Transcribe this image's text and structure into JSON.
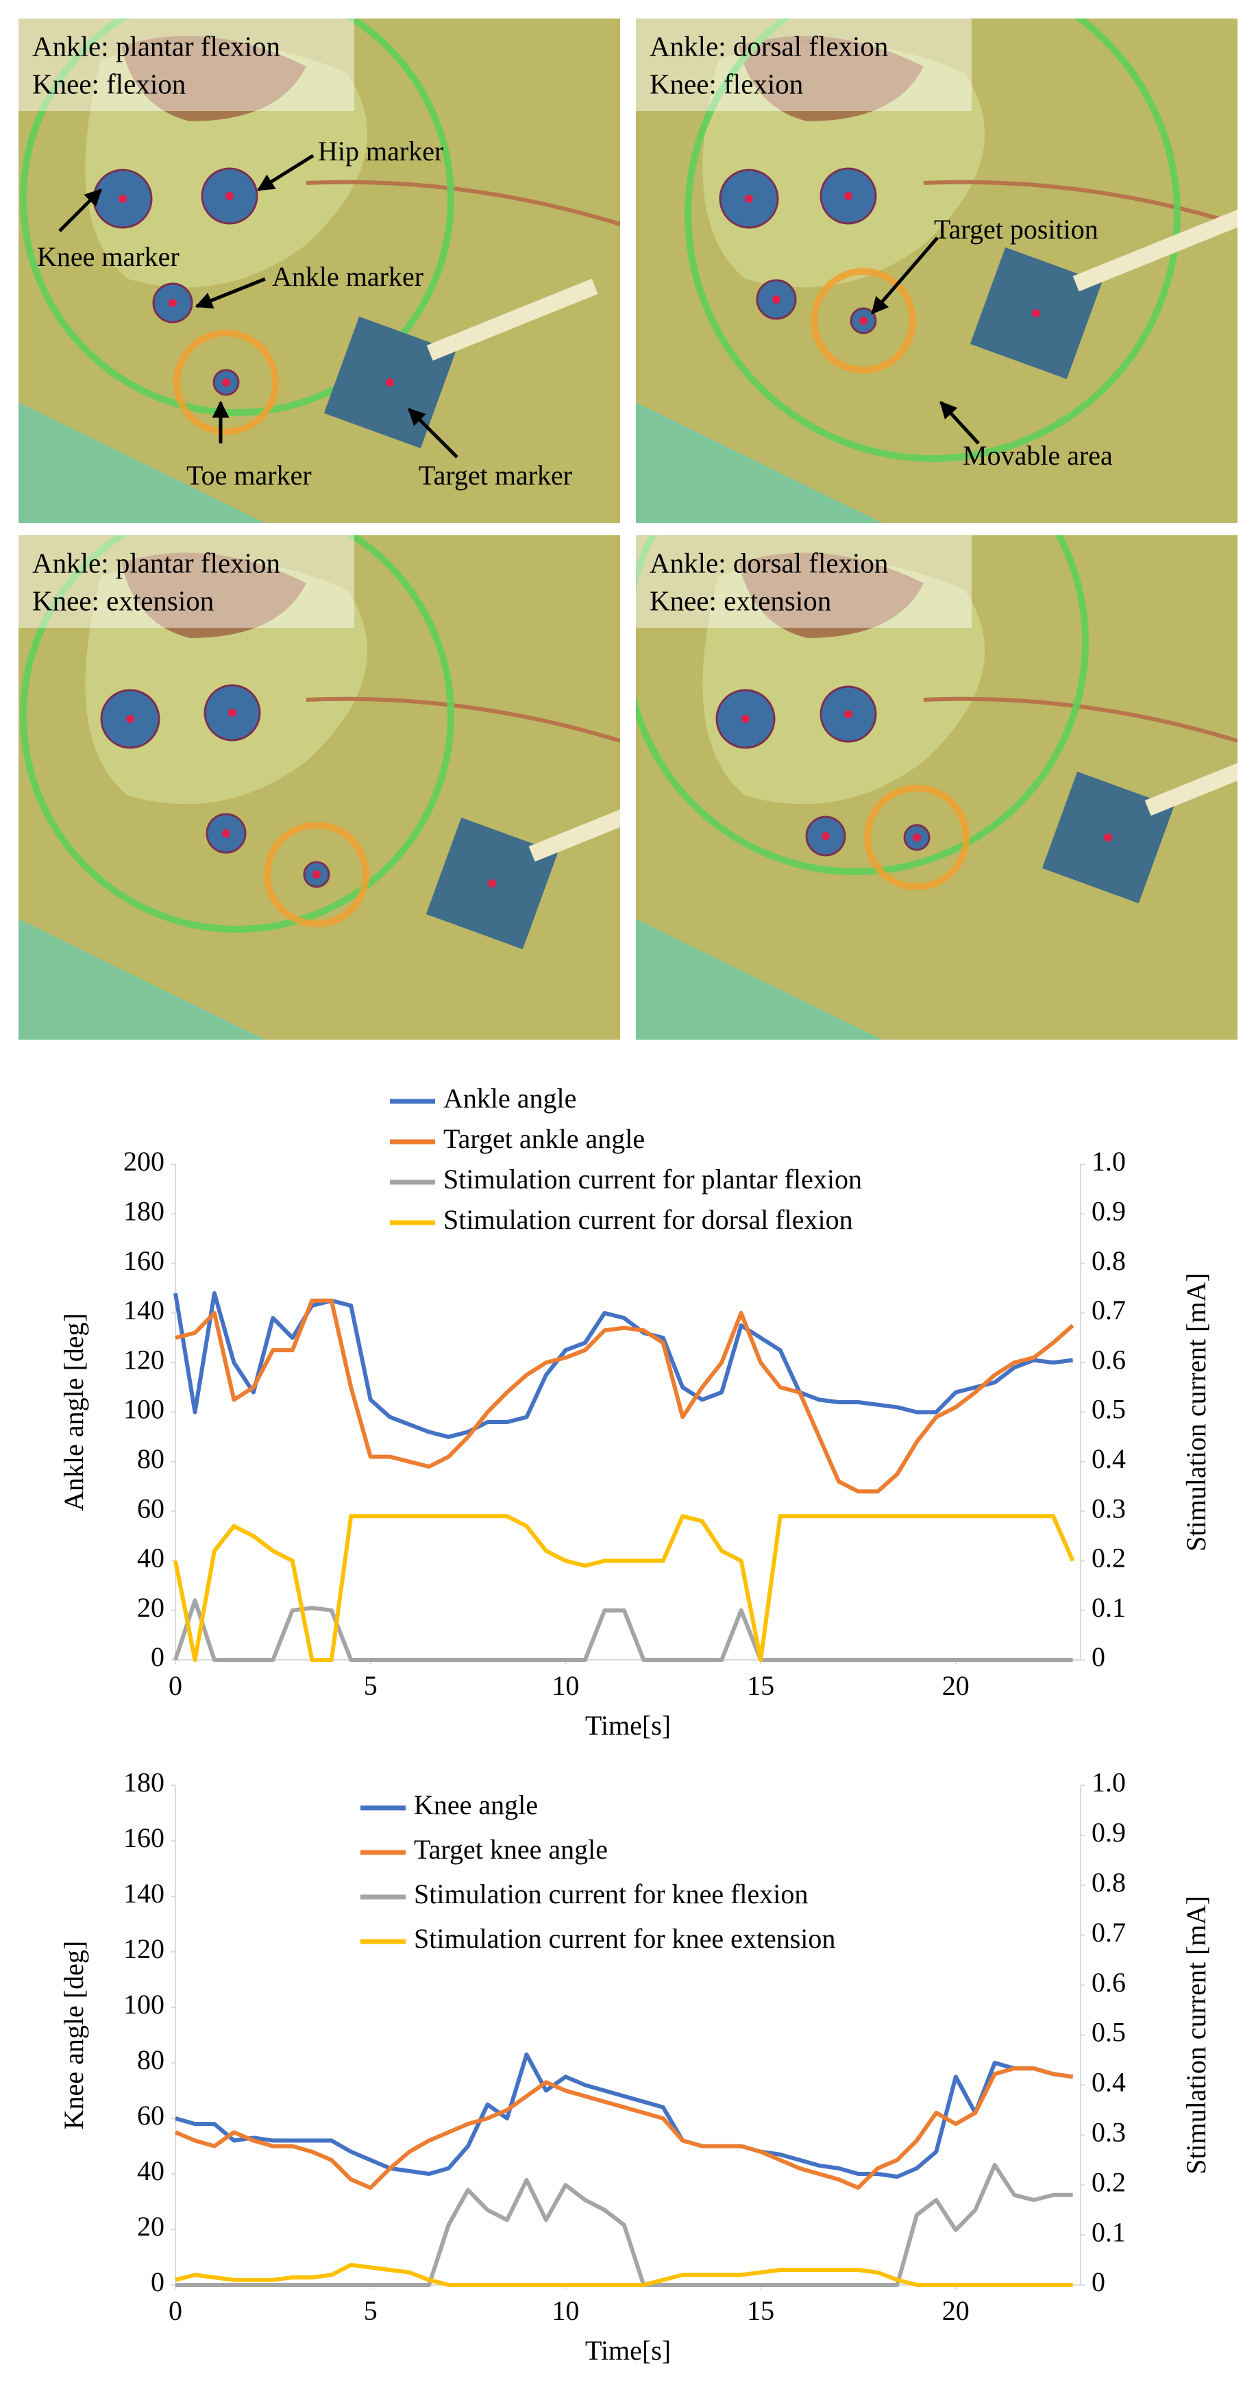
{
  "panels": [
    {
      "caption": [
        "Ankle: plantar flexion",
        "Knee: flexion"
      ],
      "annotations": [
        "Hip marker",
        "Knee marker",
        "Ankle marker",
        "Toe marker",
        "Target marker"
      ]
    },
    {
      "caption": [
        "Ankle: dorsal flexion",
        "Knee: flexion"
      ],
      "annotations": [
        "Target position",
        "Movable area"
      ]
    },
    {
      "caption": [
        "Ankle: plantar flexion",
        "Knee: extension"
      ]
    },
    {
      "caption": [
        "Ankle: dorsal flexion",
        "Knee: extension"
      ]
    }
  ],
  "chart_data": [
    {
      "type": "line",
      "x_label": "Time[s]",
      "y_label": "Ankle angle [deg]",
      "y2_label": "Stimulation current [mA]",
      "x": [
        0,
        0.5,
        1,
        1.5,
        2,
        2.5,
        3,
        3.5,
        4,
        4.5,
        5,
        5.5,
        6,
        6.5,
        7,
        7.5,
        8,
        8.5,
        9,
        9.5,
        10,
        10.5,
        11,
        11.5,
        12,
        12.5,
        13,
        13.5,
        14,
        14.5,
        15,
        15.5,
        16,
        16.5,
        17,
        17.5,
        18,
        18.5,
        19,
        19.5,
        20,
        20.5,
        21,
        21.5,
        22,
        22.5,
        23
      ],
      "xlim": [
        0,
        23.2
      ],
      "xticks": [
        0,
        5,
        10,
        15,
        20
      ],
      "ylim": [
        0,
        200
      ],
      "yticks": [
        0,
        20,
        40,
        60,
        80,
        100,
        120,
        140,
        160,
        180,
        200
      ],
      "y2lim": [
        0,
        1
      ],
      "y2ticks": [
        0,
        0.1,
        0.2,
        0.3,
        0.4,
        0.5,
        0.6,
        0.7,
        0.8,
        0.9,
        {
          "value": 1,
          "label": "1.0"
        }
      ],
      "grid": false,
      "series": [
        {
          "name": "Ankle angle",
          "color": "#4472c4",
          "values": [
            148,
            100,
            148,
            120,
            108,
            138,
            130,
            143,
            145,
            143,
            105,
            98,
            95,
            92,
            90,
            92,
            96,
            96,
            98,
            115,
            125,
            128,
            140,
            138,
            132,
            130,
            110,
            105,
            108,
            135,
            130,
            125,
            108,
            105,
            104,
            104,
            103,
            102,
            100,
            100,
            108,
            110,
            112,
            118,
            121,
            120,
            121
          ]
        },
        {
          "name": "Target ankle angle",
          "color": "#ed7d31",
          "values": [
            130,
            132,
            140,
            105,
            110,
            125,
            125,
            145,
            145,
            110,
            82,
            82,
            80,
            78,
            82,
            90,
            100,
            108,
            115,
            120,
            122,
            125,
            133,
            134,
            133,
            128,
            98,
            110,
            120,
            140,
            120,
            110,
            108,
            90,
            72,
            68,
            68,
            75,
            88,
            98,
            102,
            108,
            115,
            120,
            122,
            128,
            135
          ]
        },
        {
          "name": "Stimulation current for plantar flexion",
          "color": "#a5a5a5",
          "axis": "y2",
          "values": [
            0,
            0.12,
            0,
            0,
            0,
            0,
            0.1,
            0.105,
            0.1,
            0,
            0,
            0,
            0,
            0,
            0,
            0,
            0,
            0,
            0,
            0,
            0,
            0,
            0.1,
            0.1,
            0,
            0,
            0,
            0,
            0,
            0.1,
            0,
            0,
            0,
            0,
            0,
            0,
            0,
            0,
            0,
            0,
            0,
            0,
            0,
            0,
            0,
            0,
            0
          ]
        },
        {
          "name": "Stimulation current for dorsal flexion",
          "color": "#ffc000",
          "axis": "y2",
          "values": [
            0.2,
            0,
            0.22,
            0.27,
            0.25,
            0.22,
            0.2,
            0,
            0,
            0.29,
            0.29,
            0.29,
            0.29,
            0.29,
            0.29,
            0.29,
            0.29,
            0.29,
            0.27,
            0.22,
            0.2,
            0.19,
            0.2,
            0.2,
            0.2,
            0.2,
            0.29,
            0.28,
            0.22,
            0.2,
            0,
            0.29,
            0.29,
            0.29,
            0.29,
            0.29,
            0.29,
            0.29,
            0.29,
            0.29,
            0.29,
            0.29,
            0.29,
            0.29,
            0.29,
            0.29,
            0.2
          ]
        }
      ]
    },
    {
      "type": "line",
      "x_label": "Time[s]",
      "y_label": "Knee angle [deg]",
      "y2_label": "Stimulation current [mA]",
      "x": [
        0,
        0.5,
        1,
        1.5,
        2,
        2.5,
        3,
        3.5,
        4,
        4.5,
        5,
        5.5,
        6,
        6.5,
        7,
        7.5,
        8,
        8.5,
        9,
        9.5,
        10,
        10.5,
        11,
        11.5,
        12,
        12.5,
        13,
        13.5,
        14,
        14.5,
        15,
        15.5,
        16,
        16.5,
        17,
        17.5,
        18,
        18.5,
        19,
        19.5,
        20,
        20.5,
        21,
        21.5,
        22,
        22.5,
        23
      ],
      "xlim": [
        0,
        23.2
      ],
      "xticks": [
        0,
        5,
        10,
        15,
        20
      ],
      "ylim": [
        0,
        180
      ],
      "yticks": [
        0,
        20,
        40,
        60,
        80,
        100,
        120,
        140,
        160,
        180
      ],
      "y2lim": [
        0,
        1
      ],
      "y2ticks": [
        0,
        0.1,
        0.2,
        0.3,
        0.4,
        0.5,
        0.6,
        0.7,
        0.8,
        0.9,
        {
          "value": 1,
          "label": "1.0"
        }
      ],
      "grid": false,
      "series": [
        {
          "name": "Knee angle",
          "color": "#4472c4",
          "values": [
            60,
            58,
            58,
            52,
            53,
            52,
            52,
            52,
            52,
            48,
            45,
            42,
            41,
            40,
            42,
            50,
            65,
            60,
            83,
            70,
            75,
            72,
            70,
            68,
            66,
            64,
            52,
            50,
            50,
            50,
            48,
            47,
            45,
            43,
            42,
            40,
            40,
            39,
            42,
            48,
            75,
            62,
            80,
            78,
            78,
            76,
            75
          ]
        },
        {
          "name": "Target knee angle",
          "color": "#ed7d31",
          "values": [
            55,
            52,
            50,
            55,
            52,
            50,
            50,
            48,
            45,
            38,
            35,
            42,
            48,
            52,
            55,
            58,
            60,
            63,
            68,
            73,
            70,
            68,
            66,
            64,
            62,
            60,
            52,
            50,
            50,
            50,
            48,
            45,
            42,
            40,
            38,
            35,
            42,
            45,
            52,
            62,
            58,
            62,
            76,
            78,
            78,
            76,
            75
          ]
        },
        {
          "name": "Stimulation current for knee flexion",
          "color": "#a5a5a5",
          "axis": "y2",
          "values": [
            0,
            0,
            0,
            0,
            0,
            0,
            0,
            0,
            0,
            0,
            0,
            0,
            0,
            0,
            0.12,
            0.19,
            0.15,
            0.13,
            0.21,
            0.13,
            0.2,
            0.17,
            0.15,
            0.12,
            0,
            0,
            0,
            0,
            0,
            0,
            0,
            0,
            0,
            0,
            0,
            0,
            0,
            0,
            0.14,
            0.17,
            0.11,
            0.15,
            0.24,
            0.18,
            0.17,
            0.18,
            0.18
          ]
        },
        {
          "name": "Stimulation current for knee extension",
          "color": "#ffc000",
          "axis": "y2",
          "values": [
            0.01,
            0.02,
            0.015,
            0.01,
            0.01,
            0.01,
            0.015,
            0.015,
            0.02,
            0.04,
            0.035,
            0.03,
            0.025,
            0.01,
            0,
            0,
            0,
            0,
            0,
            0,
            0,
            0,
            0,
            0,
            0,
            0.01,
            0.02,
            0.02,
            0.02,
            0.02,
            0.025,
            0.03,
            0.03,
            0.03,
            0.03,
            0.03,
            0.025,
            0.01,
            0,
            0,
            0,
            0,
            0,
            0,
            0,
            0,
            0
          ]
        }
      ]
    }
  ]
}
